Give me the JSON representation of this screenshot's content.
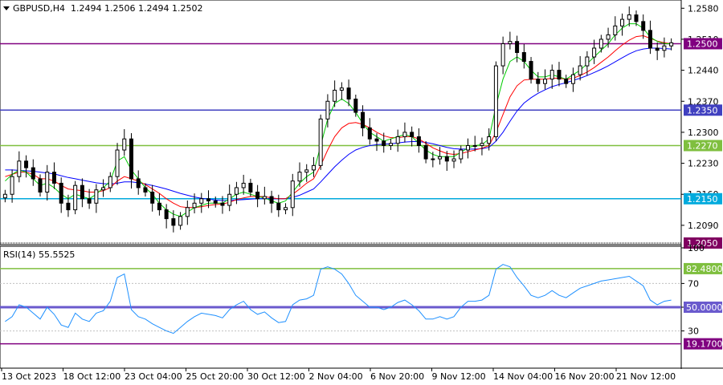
{
  "header": {
    "symbol_timeframe": "GBPUSD,H4",
    "ohlc": "1.2494 1.2506 1.2494 1.2502"
  },
  "rsi_header": "RSI(14) 55.5525",
  "colors": {
    "bg": "#ffffff",
    "candle": "#000000",
    "ma_fast": "#00cc00",
    "ma_mid": "#ff0000",
    "ma_slow": "#0000ff",
    "rsi_line": "#1e90ff",
    "level_1_2500": "#800080",
    "level_1_2350": "#4040c0",
    "level_1_2270": "#7fbf3f",
    "level_1_2150": "#00aadd",
    "rsi_level_82": "#7fbf3f",
    "rsi_level_50": "#6a5acd",
    "rsi_level_19": "#800080",
    "tag_1_2050": "#800060"
  },
  "chart_data": [
    {
      "type": "candlestick",
      "title": "GBPUSD,H4",
      "price_axis_ticks": [
        "1.2580",
        "1.2510",
        "1.2440",
        "1.2370",
        "1.2300",
        "1.2230",
        "1.2160",
        "1.2090"
      ],
      "ylim": [
        1.205,
        1.2595
      ],
      "horizontal_levels": [
        {
          "value": 1.25,
          "label": "1.2500"
        },
        {
          "value": 1.235,
          "label": "1.2350"
        },
        {
          "value": 1.227,
          "label": "1.2270"
        },
        {
          "value": 1.215,
          "label": "1.2150"
        },
        {
          "value": 1.205,
          "label": "1.2050"
        }
      ],
      "x_labels": [
        "13 Oct 2023",
        "18 Oct 12:00",
        "23 Oct 04:00",
        "25 Oct 20:00",
        "30 Oct 12:00",
        "2 Nov 04:00",
        "6 Nov 20:00",
        "9 Nov 12:00",
        "14 Nov 04:00",
        "16 Nov 20:00",
        "21 Nov 12:00"
      ],
      "close_path": [
        1.216,
        1.22,
        1.2235,
        1.222,
        1.2195,
        1.2165,
        1.221,
        1.2185,
        1.214,
        1.2125,
        1.218,
        1.215,
        1.214,
        1.217,
        1.2175,
        1.22,
        1.226,
        1.2285,
        1.2195,
        1.2175,
        1.2165,
        1.214,
        1.2125,
        1.2105,
        1.209,
        1.211,
        1.213,
        1.214,
        1.215,
        1.2145,
        1.214,
        1.2135,
        1.216,
        1.2175,
        1.2185,
        1.2165,
        1.215,
        1.2155,
        1.214,
        1.2125,
        1.213,
        1.219,
        1.221,
        1.2215,
        1.2225,
        1.233,
        1.237,
        1.2395,
        1.24,
        1.2375,
        1.2345,
        1.231,
        1.2285,
        1.228,
        1.227,
        1.2275,
        1.229,
        1.23,
        1.229,
        1.227,
        1.224,
        1.224,
        1.2245,
        1.2235,
        1.224,
        1.226,
        1.227,
        1.227,
        1.2275,
        1.229,
        1.245,
        1.25,
        1.2505,
        1.248,
        1.246,
        1.242,
        1.241,
        1.242,
        1.244,
        1.242,
        1.241,
        1.243,
        1.245,
        1.247,
        1.249,
        1.251,
        1.252,
        1.254,
        1.2555,
        1.2565,
        1.255,
        1.253,
        1.249,
        1.2485,
        1.2495,
        1.2502
      ],
      "ma_fast_path": [
        1.219,
        1.2205,
        1.2215,
        1.221,
        1.2195,
        1.218,
        1.2185,
        1.2175,
        1.216,
        1.215,
        1.216,
        1.2155,
        1.215,
        1.216,
        1.2175,
        1.219,
        1.2235,
        1.2245,
        1.2215,
        1.2195,
        1.2175,
        1.216,
        1.214,
        1.2125,
        1.2115,
        1.211,
        1.212,
        1.213,
        1.2135,
        1.214,
        1.214,
        1.214,
        1.215,
        1.216,
        1.2165,
        1.216,
        1.2155,
        1.2152,
        1.2145,
        1.214,
        1.2145,
        1.2165,
        1.2185,
        1.22,
        1.221,
        1.227,
        1.233,
        1.2365,
        1.2375,
        1.2365,
        1.2345,
        1.232,
        1.23,
        1.229,
        1.228,
        1.2285,
        1.229,
        1.2295,
        1.229,
        1.2275,
        1.226,
        1.225,
        1.2245,
        1.2245,
        1.2245,
        1.2255,
        1.2265,
        1.227,
        1.2272,
        1.2285,
        1.236,
        1.242,
        1.246,
        1.247,
        1.246,
        1.244,
        1.2425,
        1.2425,
        1.243,
        1.2425,
        1.242,
        1.243,
        1.244,
        1.2455,
        1.247,
        1.2485,
        1.25,
        1.252,
        1.2535,
        1.2545,
        1.2545,
        1.2535,
        1.2515,
        1.2505,
        1.25,
        1.25
      ],
      "ma_mid_path": [
        1.22,
        1.2205,
        1.221,
        1.221,
        1.2205,
        1.2195,
        1.2195,
        1.219,
        1.218,
        1.2172,
        1.217,
        1.2168,
        1.2165,
        1.2165,
        1.2168,
        1.2175,
        1.219,
        1.22,
        1.2195,
        1.219,
        1.2182,
        1.2172,
        1.2162,
        1.215,
        1.214,
        1.2132,
        1.213,
        1.213,
        1.2132,
        1.2135,
        1.2137,
        1.2138,
        1.2142,
        1.2148,
        1.2152,
        1.2155,
        1.2155,
        1.2155,
        1.2152,
        1.215,
        1.215,
        1.216,
        1.2172,
        1.2185,
        1.2195,
        1.2225,
        1.226,
        1.229,
        1.231,
        1.232,
        1.2322,
        1.2318,
        1.231,
        1.23,
        1.2292,
        1.2288,
        1.2288,
        1.229,
        1.229,
        1.2285,
        1.2275,
        1.2265,
        1.2258,
        1.2252,
        1.225,
        1.2252,
        1.2256,
        1.226,
        1.2264,
        1.227,
        1.23,
        1.234,
        1.238,
        1.2405,
        1.2418,
        1.242,
        1.242,
        1.242,
        1.2422,
        1.2422,
        1.242,
        1.2422,
        1.2428,
        1.2436,
        1.2446,
        1.2458,
        1.247,
        1.2484,
        1.2497,
        1.2508,
        1.2516,
        1.2518,
        1.2512,
        1.2506,
        1.2502,
        1.25
      ],
      "ma_slow_path": [
        1.2215,
        1.2215,
        1.2214,
        1.2213,
        1.2212,
        1.221,
        1.2208,
        1.2206,
        1.2202,
        1.2198,
        1.2195,
        1.2192,
        1.2189,
        1.2186,
        1.2184,
        1.2183,
        1.2185,
        1.2188,
        1.2188,
        1.2186,
        1.2183,
        1.218,
        1.2176,
        1.2172,
        1.2167,
        1.2162,
        1.2158,
        1.2154,
        1.2151,
        1.2149,
        1.2147,
        1.2146,
        1.2146,
        1.2147,
        1.2148,
        1.2149,
        1.215,
        1.215,
        1.215,
        1.215,
        1.215,
        1.2153,
        1.2158,
        1.2165,
        1.2172,
        1.2188,
        1.2205,
        1.2222,
        1.2237,
        1.225,
        1.226,
        1.2266,
        1.227,
        1.2272,
        1.2273,
        1.2274,
        1.2276,
        1.2278,
        1.2279,
        1.2279,
        1.2277,
        1.2274,
        1.227,
        1.2266,
        1.2263,
        1.2262,
        1.2262,
        1.2262,
        1.2263,
        1.2266,
        1.228,
        1.23,
        1.2325,
        1.2348,
        1.2366,
        1.2378,
        1.2388,
        1.2396,
        1.2403,
        1.2408,
        1.2412,
        1.2417,
        1.2422,
        1.2428,
        1.2435,
        1.2442,
        1.245,
        1.2459,
        1.2468,
        1.2477,
        1.2484,
        1.2488,
        1.249,
        1.249,
        1.2489,
        1.2488
      ]
    },
    {
      "type": "line",
      "title": "RSI(14) 55.5525",
      "axis_ticks": [
        "100",
        "70",
        "50",
        "30"
      ],
      "ylim": [
        0,
        100
      ],
      "levels": [
        {
          "value": 82.48,
          "label": "82.4800"
        },
        {
          "value": 50.0,
          "label": "50.0000"
        },
        {
          "value": 19.17,
          "label": "19.1700"
        }
      ],
      "series": [
        {
          "values": [
            38,
            42,
            52,
            50,
            45,
            40,
            50,
            44,
            35,
            33,
            45,
            40,
            38,
            45,
            47,
            55,
            75,
            78,
            48,
            42,
            40,
            36,
            33,
            30,
            28,
            33,
            38,
            42,
            45,
            44,
            43,
            41,
            48,
            52,
            55,
            48,
            44,
            46,
            41,
            37,
            38,
            52,
            56,
            57,
            60,
            82,
            84,
            82,
            78,
            70,
            60,
            55,
            50,
            50,
            48,
            50,
            54,
            56,
            52,
            47,
            40,
            40,
            42,
            40,
            42,
            50,
            55,
            55,
            56,
            60,
            82,
            86,
            84,
            75,
            68,
            60,
            58,
            60,
            64,
            60,
            58,
            62,
            66,
            68,
            70,
            72,
            73,
            74,
            75,
            76,
            72,
            68,
            56,
            52,
            55,
            56
          ]
        }
      ]
    }
  ]
}
